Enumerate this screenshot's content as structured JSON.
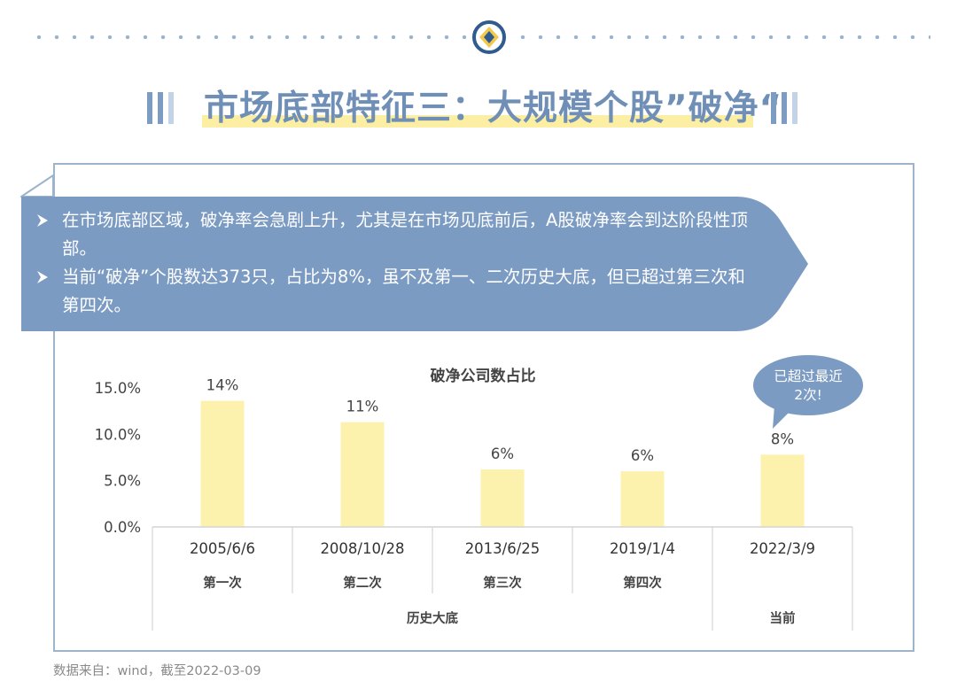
{
  "header": {
    "logo": "diamond-ring-logo-icon",
    "title": "市场底部特征三：大规模个股”破净“"
  },
  "callout": {
    "bullets": [
      "在市场底部区域，破净率会急剧上升，尤其是在市场见底前后，A股破净率会到达阶段性顶部。",
      "当前“破净”个股数达373只，占比为8%，虽不及第一、二次历史大底，但已超过第三次和第四次。"
    ],
    "bullet_icon": "chevron-right-icon"
  },
  "chart_data": {
    "type": "bar",
    "title": "破净公司数占比",
    "categories": [
      "2005/6/6",
      "2008/10/28",
      "2013/6/25",
      "2019/1/4",
      "2022/3/9"
    ],
    "values": [
      0.136,
      0.113,
      0.062,
      0.06,
      0.078
    ],
    "data_labels": [
      "14%",
      "11%",
      "6%",
      "6%",
      "8%"
    ],
    "sub_labels": [
      "第一次",
      "第二次",
      "第三次",
      "第四次",
      ""
    ],
    "groups": [
      {
        "label": "历史大底",
        "span": 4
      },
      {
        "label": "当前",
        "span": 1
      }
    ],
    "y_ticks": [
      "0.0%",
      "5.0%",
      "10.0%",
      "15.0%"
    ],
    "ylim": [
      0,
      0.15
    ],
    "grid": false,
    "bar_color": "#fcf1ad",
    "annotation": {
      "text": "已超过最近2次!",
      "lines": [
        "已超过最近",
        "2次!"
      ],
      "target": "2022/3/9"
    }
  },
  "footnote": "数据来自：wind，截至2022-03-09",
  "colors": {
    "accent": "#6f8fb6",
    "callout": "#7b9bc3",
    "frame": "#9db4cb",
    "highlight": "#fcefa3"
  }
}
